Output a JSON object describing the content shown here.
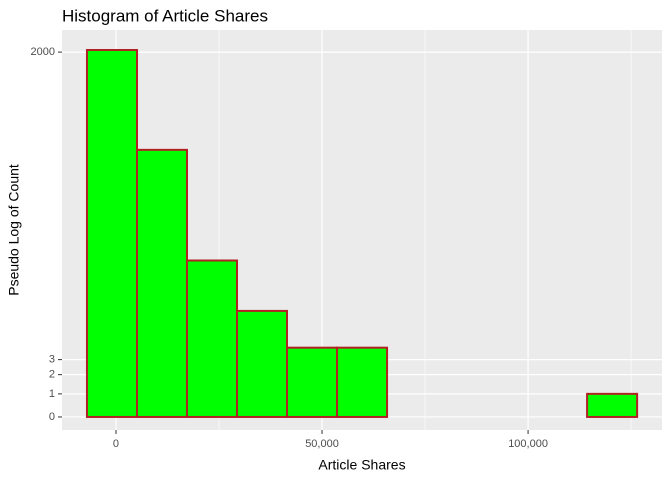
{
  "chart_data": {
    "type": "histogram",
    "title": "Histogram of Article Shares",
    "x_label": "Article Shares",
    "y_label": "Pseudo Log of Count",
    "bins": [
      -7040,
      5100,
      17230,
      29370,
      41500,
      53640,
      65780,
      77910,
      90050,
      102190,
      114320,
      126460
    ],
    "values": [
      2090,
      261,
      26,
      9,
      4,
      4,
      0,
      0,
      0,
      0,
      1
    ],
    "color": "#00ff00",
    "edge_color": "#b22222",
    "y_scale": "pseudo_log",
    "xlim": [
      -13100,
      132500
    ],
    "ylim": [
      -0.55,
      3170
    ],
    "xticks": [
      0,
      {
        "value": 50000,
        "label": "50,000"
      },
      {
        "value": 100000,
        "label": "100,000"
      }
    ],
    "x_minor_ticks": [
      25000,
      75000,
      125000
    ],
    "yticks": [
      0,
      1,
      2,
      3,
      2000
    ],
    "grid": true
  }
}
